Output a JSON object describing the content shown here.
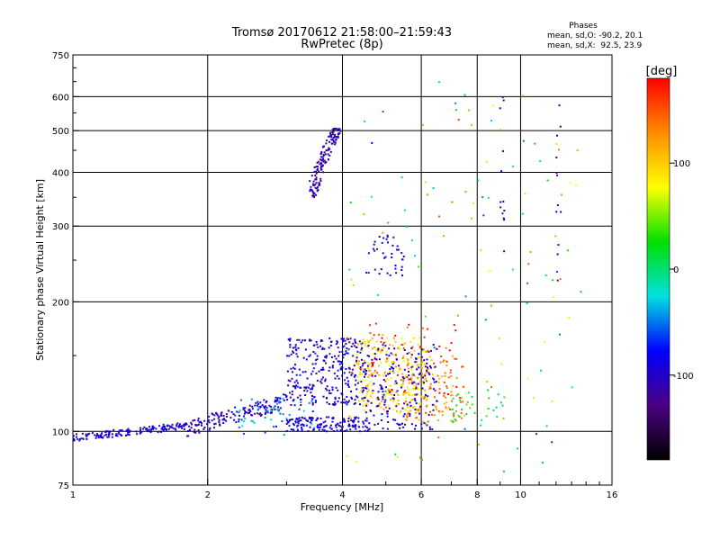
{
  "chart_data": {
    "type": "scatter",
    "title": "Tromsø 20170612 21:58:00–21:59:43",
    "subtitle": "RwPretec (8p)",
    "xlabel": "Frequency [MHz]",
    "ylabel": "Stationary phase Virtual Height [km]",
    "x_scale": "log",
    "y_scale": "log",
    "xlim": [
      1,
      16
    ],
    "ylim": [
      75,
      750
    ],
    "x_ticks": [
      1,
      2,
      4,
      6,
      8,
      10,
      16
    ],
    "x_tick_labels": [
      "1",
      "2",
      "4",
      "6",
      "8",
      "10",
      "16"
    ],
    "y_ticks": [
      75,
      100,
      200,
      300,
      400,
      500,
      600,
      750
    ],
    "y_tick_labels": [
      "75",
      "100",
      "200",
      "300",
      "400",
      "500",
      "600",
      "750"
    ],
    "grid": true,
    "grid_x": [
      1,
      2,
      4,
      6,
      8,
      10,
      16
    ],
    "grid_y": [
      100,
      200,
      300,
      400,
      500,
      600
    ],
    "phase_stats": {
      "heading": "Phases",
      "line_o": "mean, sd,O: -90.2, 20.1",
      "line_x": "mean, sd,X:  92.5, 23.9"
    },
    "colorbar": {
      "label": "[deg]",
      "range": [
        -180,
        180
      ],
      "ticks": [
        100,
        0,
        -100
      ],
      "tick_labels": [
        "100",
        "0",
        "-100"
      ],
      "colors": [
        "#ff0000",
        "#ff8c00",
        "#ffff00",
        "#00e000",
        "#00e0e0",
        "#0000ff",
        "#4b0082",
        "#000000"
      ]
    },
    "clusters": [
      {
        "name": "ground",
        "x": [
          1.0,
          1.8
        ],
        "y": [
          95,
          106
        ],
        "phase": -95,
        "n": 160
      },
      {
        "name": "ramp",
        "x": [
          1.8,
          3.0
        ],
        "y": [
          98,
          125
        ],
        "phase": -100,
        "n": 150
      },
      {
        "name": "cyan-band",
        "x": [
          2.3,
          3.5
        ],
        "y": [
          98,
          120
        ],
        "phase": -45,
        "n": 60
      },
      {
        "name": "e-trace",
        "x": [
          3.0,
          4.6
        ],
        "y": [
          100,
          108
        ],
        "phase": -95,
        "n": 150
      },
      {
        "name": "f-lower",
        "x": [
          3.0,
          4.5
        ],
        "y": [
          115,
          165
        ],
        "phase": -95,
        "n": 300
      },
      {
        "name": "f-cusp",
        "x": [
          3.3,
          3.9
        ],
        "y": [
          350,
          510
        ],
        "phase": -110,
        "n": 140
      },
      {
        "name": "f2-o",
        "x": [
          4.3,
          6.2
        ],
        "y": [
          110,
          165
        ],
        "phase": 95,
        "n": 240
      },
      {
        "name": "f2-o-orange",
        "x": [
          5.5,
          7.5
        ],
        "y": [
          105,
          150
        ],
        "phase": 130,
        "n": 120
      },
      {
        "name": "f2-blue",
        "x": [
          4.5,
          6.5
        ],
        "y": [
          100,
          160
        ],
        "phase": -100,
        "n": 180
      },
      {
        "name": "mid-blue",
        "x": [
          4.5,
          5.5
        ],
        "y": [
          230,
          290
        ],
        "phase": -100,
        "n": 40
      },
      {
        "name": "mixed-high",
        "x": [
          4.6,
          7.2
        ],
        "y": [
          120,
          180
        ],
        "phase": 160,
        "n": 60
      },
      {
        "name": "scatter-sparse",
        "x": [
          4.0,
          14.0
        ],
        "y": [
          80,
          650
        ],
        "phase": 40,
        "n": 120
      },
      {
        "name": "green-lumps",
        "x": [
          7.0,
          9.2
        ],
        "y": [
          105,
          125
        ],
        "phase": 20,
        "n": 30
      },
      {
        "name": "column-9",
        "x": [
          9.0,
          9.2
        ],
        "y": [
          250,
          600
        ],
        "phase": -110,
        "n": 14
      },
      {
        "name": "column-12",
        "x": [
          12.0,
          12.3
        ],
        "y": [
          180,
          650
        ],
        "phase": -110,
        "n": 12
      }
    ]
  }
}
